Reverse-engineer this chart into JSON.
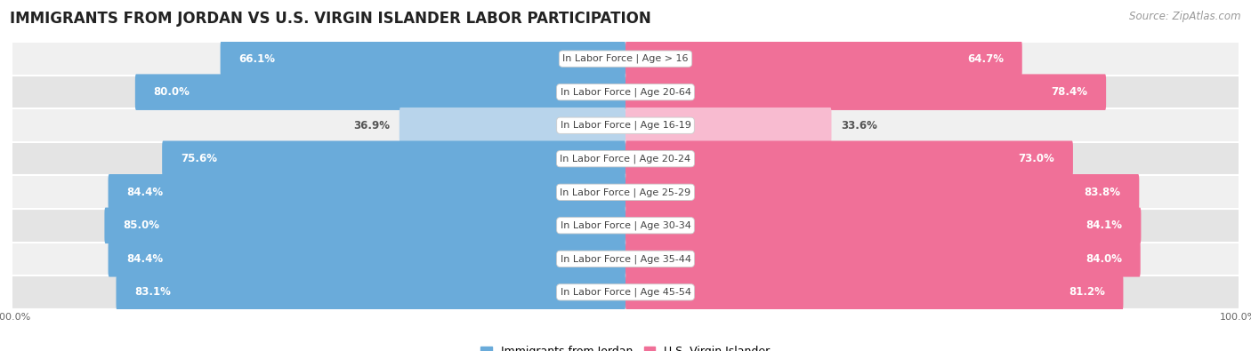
{
  "title": "IMMIGRANTS FROM JORDAN VS U.S. VIRGIN ISLANDER LABOR PARTICIPATION",
  "source": "Source: ZipAtlas.com",
  "categories": [
    "In Labor Force | Age > 16",
    "In Labor Force | Age 20-64",
    "In Labor Force | Age 16-19",
    "In Labor Force | Age 20-24",
    "In Labor Force | Age 25-29",
    "In Labor Force | Age 30-34",
    "In Labor Force | Age 35-44",
    "In Labor Force | Age 45-54"
  ],
  "jordan_values": [
    66.1,
    80.0,
    36.9,
    75.6,
    84.4,
    85.0,
    84.4,
    83.1
  ],
  "virgin_values": [
    64.7,
    78.4,
    33.6,
    73.0,
    83.8,
    84.1,
    84.0,
    81.2
  ],
  "jordan_color": "#6aabda",
  "jordan_color_light": "#b8d4eb",
  "virgin_color": "#f07098",
  "virgin_color_light": "#f8bbd0",
  "row_bg_even": "#f0f0f0",
  "row_bg_odd": "#e4e4e4",
  "max_value": 100.0,
  "title_fontsize": 12,
  "source_fontsize": 8.5,
  "bar_label_fontsize": 8.5,
  "category_fontsize": 8,
  "legend_fontsize": 9,
  "axis_label_fontsize": 8
}
